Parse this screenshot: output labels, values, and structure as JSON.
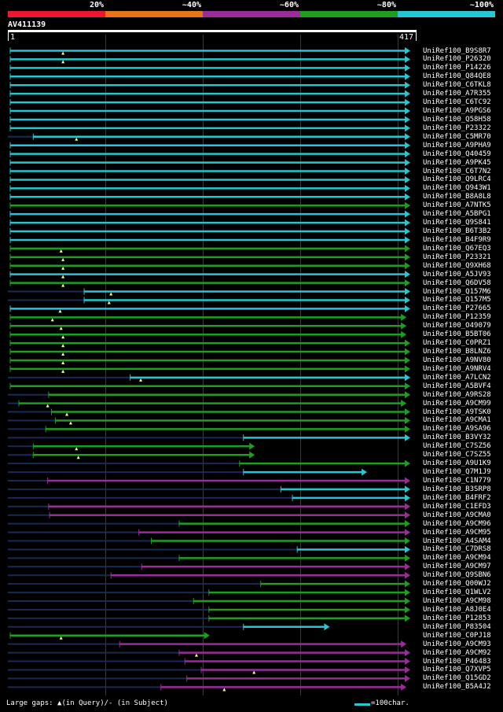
{
  "legend": {
    "labels": [
      "20%",
      "~40%",
      "~60%",
      "~80%",
      "~100%"
    ],
    "colors": [
      "#e8192c",
      "#e8731a",
      "#9b2b9b",
      "#1e9e1e",
      "#26c6d3"
    ]
  },
  "query_id": "AV411139",
  "ruler": {
    "start": "1",
    "end": "417"
  },
  "scale": {
    "min": 1,
    "max": 417
  },
  "hits": [
    {
      "name": "UniRef100_B9S8R7",
      "s": 1,
      "e": 417,
      "c": 4,
      "tri": 56
    },
    {
      "name": "UniRef100_P26320",
      "s": 1,
      "e": 417,
      "c": 4,
      "tri": 56
    },
    {
      "name": "UniRef100_P14226",
      "s": 1,
      "e": 417,
      "c": 4
    },
    {
      "name": "UniRef100_Q84QE8",
      "s": 1,
      "e": 417,
      "c": 4
    },
    {
      "name": "UniRef100_C6TKL8",
      "s": 1,
      "e": 417,
      "c": 4
    },
    {
      "name": "UniRef100_A7R355",
      "s": 1,
      "e": 417,
      "c": 4
    },
    {
      "name": "UniRef100_C6TC92",
      "s": 1,
      "e": 417,
      "c": 4
    },
    {
      "name": "UniRef100_A9PGS6",
      "s": 1,
      "e": 417,
      "c": 4
    },
    {
      "name": "UniRef100_Q58H58",
      "s": 1,
      "e": 417,
      "c": 4
    },
    {
      "name": "UniRef100_P23322",
      "s": 1,
      "e": 417,
      "c": 4
    },
    {
      "name": "UniRef100_C5MR70",
      "s": 25,
      "e": 417,
      "c": 4,
      "tri": 70
    },
    {
      "name": "UniRef100_A9PHA9",
      "s": 1,
      "e": 417,
      "c": 4
    },
    {
      "name": "UniRef100_Q40459",
      "s": 1,
      "e": 417,
      "c": 4
    },
    {
      "name": "UniRef100_A9PK45",
      "s": 1,
      "e": 417,
      "c": 4
    },
    {
      "name": "UniRef100_C6T7N2",
      "s": 1,
      "e": 417,
      "c": 4
    },
    {
      "name": "UniRef100_Q9LRC4",
      "s": 1,
      "e": 417,
      "c": 4
    },
    {
      "name": "UniRef100_Q943W1",
      "s": 1,
      "e": 417,
      "c": 4
    },
    {
      "name": "UniRef100_B8A8L8",
      "s": 1,
      "e": 417,
      "c": 4
    },
    {
      "name": "UniRef100_A7NTK5",
      "s": 1,
      "e": 417,
      "c": 3
    },
    {
      "name": "UniRef100_A5BPG1",
      "s": 1,
      "e": 417,
      "c": 4
    },
    {
      "name": "UniRef100_Q9S841",
      "s": 1,
      "e": 417,
      "c": 4
    },
    {
      "name": "UniRef100_B6T3B2",
      "s": 1,
      "e": 417,
      "c": 4
    },
    {
      "name": "UniRef100_B4F9R9",
      "s": 1,
      "e": 417,
      "c": 4
    },
    {
      "name": "UniRef100_Q67EQ3",
      "s": 1,
      "e": 417,
      "c": 3,
      "tri": 54
    },
    {
      "name": "UniRef100_P23321",
      "s": 1,
      "e": 417,
      "c": 3,
      "tri": 56
    },
    {
      "name": "UniRef100_Q9XH68",
      "s": 1,
      "e": 417,
      "c": 3,
      "tri": 56
    },
    {
      "name": "UniRef100_A5JV93",
      "s": 1,
      "e": 417,
      "c": 4,
      "tri": 56
    },
    {
      "name": "UniRef100_Q6DV58",
      "s": 1,
      "e": 417,
      "c": 3,
      "tri": 56
    },
    {
      "name": "UniRef100_Q157M6",
      "s": 78,
      "e": 417,
      "c": 4,
      "tri": 106
    },
    {
      "name": "UniRef100_Q157M5",
      "s": 78,
      "e": 417,
      "c": 4,
      "tri": 104
    },
    {
      "name": "UniRef100_P27665",
      "s": 1,
      "e": 417,
      "c": 4,
      "tri": 53
    },
    {
      "name": "UniRef100_P12359",
      "s": 1,
      "e": 413,
      "c": 3,
      "tri": 45
    },
    {
      "name": "UniRef100_O49079",
      "s": 1,
      "e": 413,
      "c": 3,
      "tri": 54
    },
    {
      "name": "UniRef100_B5BT06",
      "s": 1,
      "e": 413,
      "c": 3,
      "tri": 56
    },
    {
      "name": "UniRef100_C0PRZ1",
      "s": 1,
      "e": 417,
      "c": 3,
      "tri": 56
    },
    {
      "name": "UniRef100_B8LNZ6",
      "s": 1,
      "e": 417,
      "c": 3,
      "tri": 56
    },
    {
      "name": "UniRef100_A9NV80",
      "s": 1,
      "e": 417,
      "c": 3,
      "tri": 56
    },
    {
      "name": "UniRef100_A9NRV4",
      "s": 1,
      "e": 417,
      "c": 3,
      "tri": 56
    },
    {
      "name": "UniRef100_A7LCN2",
      "s": 126,
      "e": 417,
      "c": 4,
      "tri": 137
    },
    {
      "name": "UniRef100_A5BVF4",
      "s": 1,
      "e": 417,
      "c": 3
    },
    {
      "name": "UniRef100_A9RS28",
      "s": 41,
      "e": 417,
      "c": 3
    },
    {
      "name": "UniRef100_A9CM99",
      "s": 10,
      "e": 413,
      "c": 3,
      "tri": 40
    },
    {
      "name": "UniRef100_A9TSK0",
      "s": 44,
      "e": 417,
      "c": 3,
      "tri": 60
    },
    {
      "name": "UniRef100_A9CMA1",
      "s": 48,
      "e": 417,
      "c": 3,
      "tri": 64
    },
    {
      "name": "UniRef100_A9SA96",
      "s": 38,
      "e": 417,
      "c": 3
    },
    {
      "name": "UniRef100_B3VY32",
      "s": 244,
      "e": 417,
      "c": 4
    },
    {
      "name": "UniRef100_C7SZ56",
      "s": 25,
      "e": 255,
      "c": 3,
      "tri": 70
    },
    {
      "name": "UniRef100_C7SZ55",
      "s": 25,
      "e": 255,
      "c": 3,
      "tri": 72
    },
    {
      "name": "UniRef100_A9U1K9",
      "s": 240,
      "e": 417,
      "c": 3
    },
    {
      "name": "UniRef100_Q7M1J9",
      "s": 244,
      "e": 372,
      "c": 4
    },
    {
      "name": "UniRef100_C1N779",
      "s": 40,
      "e": 417,
      "c": 2
    },
    {
      "name": "UniRef100_B3SRP8",
      "s": 283,
      "e": 417,
      "c": 4
    },
    {
      "name": "UniRef100_B4FRF2",
      "s": 295,
      "e": 417,
      "c": 4
    },
    {
      "name": "UniRef100_C1EFD3",
      "s": 41,
      "e": 417,
      "c": 2
    },
    {
      "name": "UniRef100_A9CMA0",
      "s": 42,
      "e": 417,
      "c": 2
    },
    {
      "name": "UniRef100_A9CM96",
      "s": 177,
      "e": 417,
      "c": 3
    },
    {
      "name": "UniRef100_A9CM95",
      "s": 135,
      "e": 417,
      "c": 2
    },
    {
      "name": "UniRef100_A4SAM4",
      "s": 148,
      "e": 417,
      "c": 3
    },
    {
      "name": "UniRef100_C7DRS8",
      "s": 300,
      "e": 417,
      "c": 4
    },
    {
      "name": "UniRef100_A9CM94",
      "s": 177,
      "e": 417,
      "c": 3
    },
    {
      "name": "UniRef100_A9CM97",
      "s": 138,
      "e": 417,
      "c": 2
    },
    {
      "name": "UniRef100_Q9SBN6",
      "s": 106,
      "e": 417,
      "c": 2
    },
    {
      "name": "UniRef100_Q00WJ2",
      "s": 262,
      "e": 417,
      "c": 3
    },
    {
      "name": "UniRef100_Q1WLV2",
      "s": 208,
      "e": 417,
      "c": 3
    },
    {
      "name": "UniRef100_A9CM98",
      "s": 192,
      "e": 417,
      "c": 3
    },
    {
      "name": "UniRef100_A8J0E4",
      "s": 208,
      "e": 417,
      "c": 3
    },
    {
      "name": "UniRef100_P12853",
      "s": 208,
      "e": 417,
      "c": 3
    },
    {
      "name": "UniRef100_P83504",
      "s": 244,
      "e": 333,
      "c": 4
    },
    {
      "name": "UniRef100_C0PJ18",
      "s": 1,
      "e": 208,
      "c": 3,
      "tri": 54
    },
    {
      "name": "UniRef100_A9CM93",
      "s": 115,
      "e": 413,
      "c": 2
    },
    {
      "name": "UniRef100_A9CM92",
      "s": 177,
      "e": 417,
      "c": 2,
      "tri": 195
    },
    {
      "name": "UniRef100_P46483",
      "s": 183,
      "e": 417,
      "c": 2
    },
    {
      "name": "UniRef100_Q7XVP5",
      "s": 200,
      "e": 417,
      "c": 2,
      "tri": 255
    },
    {
      "name": "UniRef100_Q15GD2",
      "s": 185,
      "e": 417,
      "c": 2
    },
    {
      "name": "UniRef100_B5A4J2",
      "s": 158,
      "e": 413,
      "c": 2,
      "tri": 224
    }
  ],
  "footer": {
    "text": "Large gaps: ▲(in Query)/- (in Subject)",
    "scale_label": "=100char."
  }
}
